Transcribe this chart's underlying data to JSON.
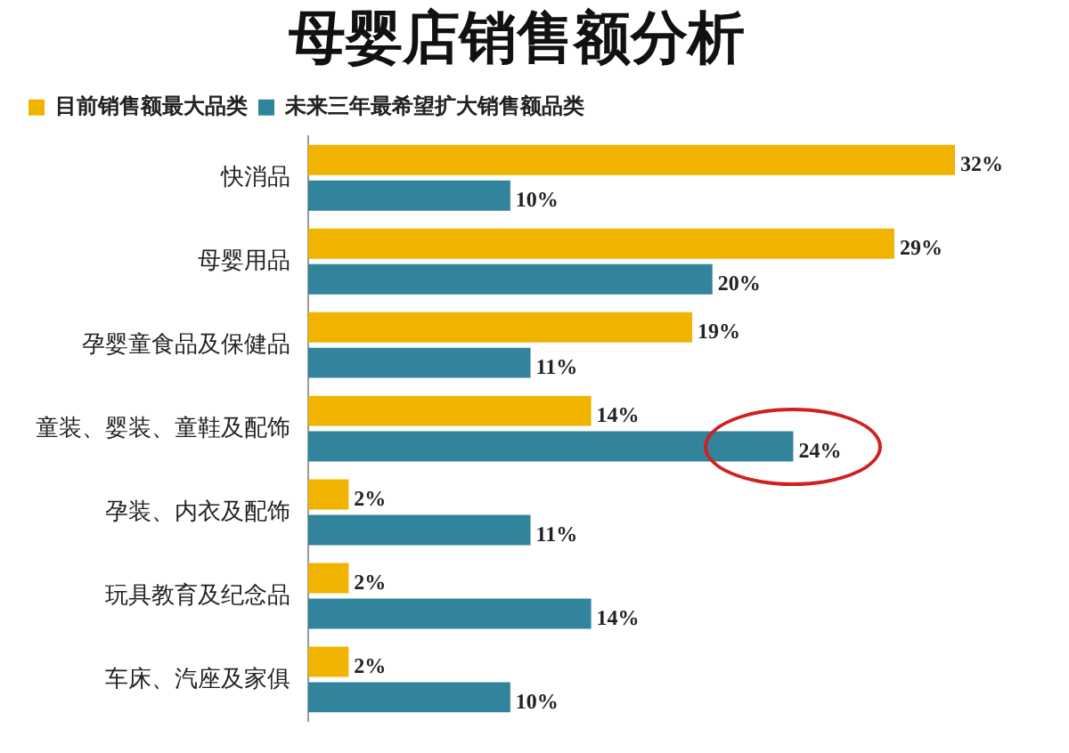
{
  "chart_data": {
    "type": "bar",
    "orientation": "horizontal",
    "title": "母婴店销售额分析",
    "categories": [
      "快消品",
      "母婴用品",
      "孕婴童食品及保健品",
      "童装、婴装、童鞋及配饰",
      "孕装、内衣及配饰",
      "玩具教育及纪念品",
      "车床、汽座及家俱"
    ],
    "series": [
      {
        "name": "目前销售额最大品类",
        "color": "#f0b400",
        "values": [
          32,
          29,
          19,
          14,
          2,
          2,
          2
        ],
        "value_labels": [
          "32%",
          "29%",
          "19%",
          "14%",
          "2%",
          "2%",
          "2%"
        ]
      },
      {
        "name": "未来三年最希望扩大销售额品类",
        "color": "#31849b",
        "values": [
          10,
          20,
          11,
          24,
          11,
          14,
          10
        ],
        "value_labels": [
          "10%",
          "20%",
          "11%",
          "24%",
          "11%",
          "14%",
          "10%"
        ]
      }
    ],
    "legend": "top left",
    "grid": false,
    "tick_labels": "y"
  }
}
